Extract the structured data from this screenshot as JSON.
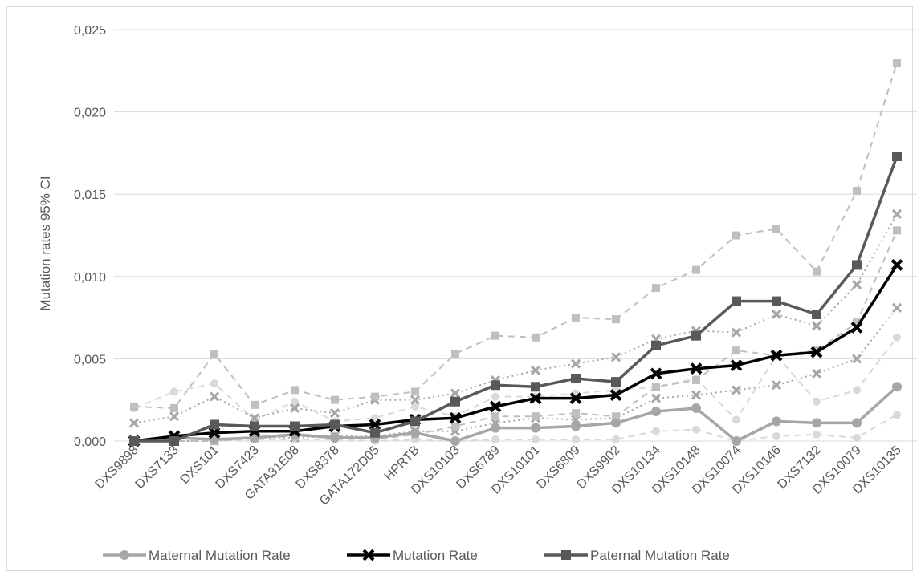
{
  "chart_data": {
    "type": "line",
    "title": "",
    "xlabel": "",
    "ylabel": "Mutation rates 95% CI",
    "ylim": [
      0,
      0.025
    ],
    "yticks": [
      "0,000",
      "0,005",
      "0,010",
      "0,015",
      "0,020",
      "0,025"
    ],
    "ytick_values": [
      0,
      0.005,
      0.01,
      0.015,
      0.02,
      0.025
    ],
    "grid": true,
    "legend_position": "bottom",
    "categories": [
      "DXS9898",
      "DXS7133",
      "DXS101",
      "DXS7423",
      "GATA31E08",
      "DXS8378",
      "GATA172D05",
      "HPRTB",
      "DXS10103",
      "DXS6789",
      "DXS10101",
      "DXS6809",
      "DXS9902",
      "DXS10134",
      "DXS10148",
      "DXS10074",
      "DXS10146",
      "DXS7132",
      "DXS10079",
      "DXS10135"
    ],
    "series": [
      {
        "name": "Maternal Mutation Rate",
        "color": "#a6a6a6",
        "marker": "circle",
        "values": [
          0,
          0.0002,
          0.0001,
          0.0002,
          0.0004,
          0.0002,
          0.0002,
          0.0005,
          0.0,
          0.0008,
          0.0008,
          0.0009,
          0.0011,
          0.0018,
          0.002,
          0.0,
          0.0012,
          0.0011,
          0.0011,
          0.0033
        ]
      },
      {
        "name": "Mutation Rate",
        "color": "#000000",
        "marker": "x",
        "values": [
          0,
          0.0003,
          0.0005,
          0.0006,
          0.0006,
          0.0009,
          0.001,
          0.0013,
          0.0014,
          0.0021,
          0.0026,
          0.0026,
          0.0028,
          0.0041,
          0.0044,
          0.0046,
          0.0052,
          0.0054,
          0.0069,
          0.0107
        ]
      },
      {
        "name": "Paternal Mutation Rate",
        "color": "#595959",
        "marker": "square",
        "values": [
          0,
          0.0,
          0.001,
          0.0009,
          0.0009,
          0.001,
          0.0005,
          0.0012,
          0.0024,
          0.0034,
          0.0033,
          0.0038,
          0.0036,
          0.0058,
          0.0064,
          0.0085,
          0.0085,
          0.0077,
          0.0107,
          0.0173
        ]
      }
    ],
    "ci_series": [
      {
        "of": "Maternal Mutation Rate",
        "bound": "upper",
        "color": "#d9d9d9",
        "marker": "circle",
        "dash": "dashed",
        "values": [
          0.002,
          0.003,
          0.0035,
          0.0013,
          0.0024,
          0.0012,
          0.0014,
          0.0021,
          0.0015,
          0.0027,
          0.0027,
          0.0029,
          0.0031,
          0.0033,
          0.0038,
          0.0013,
          0.0052,
          0.0024,
          0.0031,
          0.0063
        ]
      },
      {
        "of": "Maternal Mutation Rate",
        "bound": "lower",
        "color": "#d9d9d9",
        "marker": "circle",
        "dash": "dashed",
        "values": [
          0,
          0.0,
          0.0,
          0.0001,
          0.0001,
          0.0001,
          0.0,
          0.0001,
          0.0,
          0.0001,
          0.0001,
          0.0001,
          0.0001,
          0.0006,
          0.0007,
          0.0,
          0.0003,
          0.0004,
          0.0002,
          0.0016
        ]
      },
      {
        "of": "Mutation Rate",
        "bound": "upper",
        "color": "#a6a6a6",
        "marker": "x",
        "dash": "dotted",
        "values": [
          0.0011,
          0.0015,
          0.0027,
          0.0014,
          0.002,
          0.0017,
          0.0025,
          0.0025,
          0.0029,
          0.0037,
          0.0043,
          0.0047,
          0.0051,
          0.0062,
          0.0067,
          0.0066,
          0.0077,
          0.007,
          0.0095,
          0.0138
        ]
      },
      {
        "of": "Mutation Rate",
        "bound": "lower",
        "color": "#a6a6a6",
        "marker": "x",
        "dash": "dotted",
        "values": [
          0,
          0.0,
          0.0,
          0.0002,
          0.0002,
          0.0003,
          0.0003,
          0.0006,
          0.0006,
          0.0011,
          0.0014,
          0.0013,
          0.0014,
          0.0026,
          0.0028,
          0.0031,
          0.0034,
          0.0041,
          0.005,
          0.0081
        ]
      },
      {
        "of": "Paternal Mutation Rate",
        "bound": "upper",
        "color": "#bfbfbf",
        "marker": "square",
        "dash": "dashed",
        "values": [
          0.0021,
          0.002,
          0.0053,
          0.0022,
          0.0031,
          0.0025,
          0.0027,
          0.003,
          0.0053,
          0.0064,
          0.0063,
          0.0075,
          0.0074,
          0.0093,
          0.0104,
          0.0125,
          0.0129,
          0.0103,
          0.0152,
          0.023
        ]
      },
      {
        "of": "Paternal Mutation Rate",
        "bound": "lower",
        "color": "#bfbfbf",
        "marker": "square",
        "dash": "dashed",
        "values": [
          0,
          0.0,
          0.0,
          0.0002,
          0.0003,
          0.0003,
          0.0001,
          0.0004,
          0.0009,
          0.0015,
          0.0015,
          0.0017,
          0.0015,
          0.0033,
          0.0037,
          0.0055,
          0.0052,
          0.0055,
          0.0072,
          0.0128
        ]
      }
    ]
  }
}
